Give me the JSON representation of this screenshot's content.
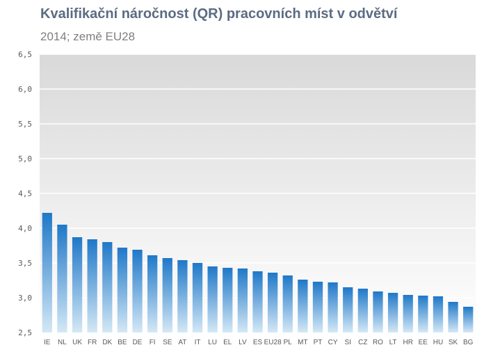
{
  "chart_data": {
    "type": "bar",
    "title": "Kvalifikační náročnost (QR)  pracovních míst v odvětví",
    "subtitle": "2014; země EU28",
    "xlabel": "",
    "ylabel": "",
    "ylim": [
      2.5,
      6.5
    ],
    "yticks": [
      "2,5",
      "3,0",
      "3,5",
      "4,0",
      "4,5",
      "5,0",
      "5,5",
      "6,0",
      "6,5"
    ],
    "grid": true,
    "categories": [
      "IE",
      "NL",
      "UK",
      "FR",
      "DK",
      "BE",
      "DE",
      "FI",
      "SE",
      "AT",
      "IT",
      "LU",
      "EL",
      "LV",
      "ES",
      "EU28",
      "PL",
      "MT",
      "PT",
      "CY",
      "SI",
      "CZ",
      "RO",
      "LT",
      "HR",
      "EE",
      "HU",
      "SK",
      "BG"
    ],
    "values": [
      4.22,
      4.05,
      3.87,
      3.84,
      3.8,
      3.72,
      3.69,
      3.61,
      3.57,
      3.54,
      3.5,
      3.45,
      3.43,
      3.42,
      3.38,
      3.36,
      3.32,
      3.26,
      3.23,
      3.22,
      3.15,
      3.13,
      3.09,
      3.07,
      3.04,
      3.03,
      3.02,
      2.94,
      2.87
    ],
    "colors": {
      "bar_top": "#1f78c8",
      "bar_bottom": "#d4e8f6",
      "plot_bg_top": "#d9d9d9",
      "plot_bg_bottom": "#ffffff",
      "title": "#5b6b82",
      "subtitle": "#7f7f7f"
    }
  }
}
